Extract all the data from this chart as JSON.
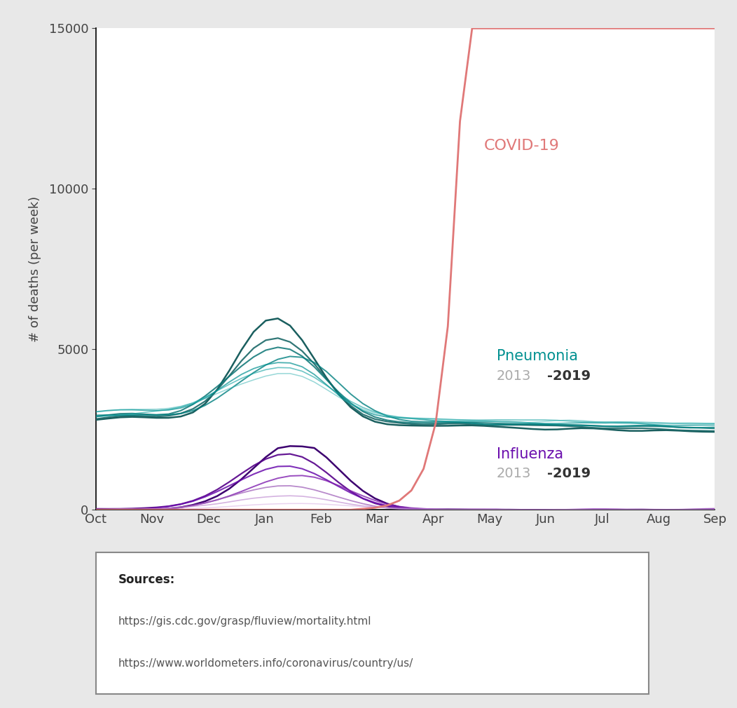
{
  "ylabel": "# of deaths (per week)",
  "xlabel_months": [
    "Oct",
    "Nov",
    "Dec",
    "Jan",
    "Feb",
    "Mar",
    "Apr",
    "May",
    "Jun",
    "Jul",
    "Aug",
    "Sep"
  ],
  "ylim": [
    0,
    15000
  ],
  "yticks": [
    0,
    5000,
    10000,
    15000
  ],
  "figure_bg": "#e8e8e8",
  "plot_bg": "#ffffff",
  "pneumonia_colors_dark": [
    "#1a6b6b",
    "#1a7070",
    "#157878",
    "#0a8585",
    "#008888",
    "#009090",
    "#1a9898"
  ],
  "pneumonia_colors_light": [
    "#40b0b0",
    "#30b8b8",
    "#20c0b8",
    "#40c8c0",
    "#60d0c8",
    "#80d8d0",
    "#a0e0d8"
  ],
  "influenza_colors_dark": [
    "#3d0070",
    "#4b0082",
    "#600090",
    "#6a0dad"
  ],
  "influenza_colors_light": [
    "#9b59b6",
    "#b07cc6",
    "#c9a0dc",
    "#d8b4e2"
  ],
  "covid_color": "#e07878",
  "pneu_label_color": "#009090",
  "infl_label_color": "#6a0dad",
  "year_light_color": "#aaaaaa",
  "year_dark_color": "#333333",
  "n_weeks": 52
}
